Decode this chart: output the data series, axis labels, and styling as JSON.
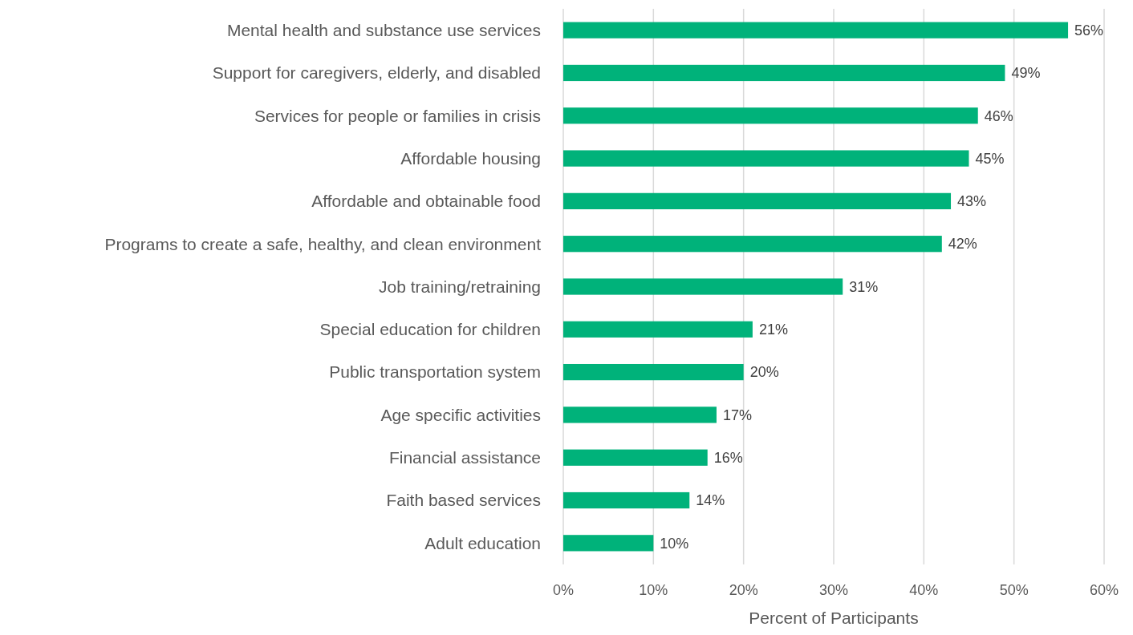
{
  "chart_data": {
    "type": "bar",
    "orientation": "horizontal",
    "categories": [
      "Mental health and substance use services",
      "Support for caregivers, elderly, and disabled",
      "Services for people or families in crisis",
      "Affordable housing",
      "Affordable and obtainable food",
      "Programs to create a safe, healthy, and clean environment",
      "Job training/retraining",
      "Special education for children",
      "Public transportation system",
      "Age specific activities",
      "Financial assistance",
      "Faith based services",
      "Adult education"
    ],
    "values": [
      56,
      49,
      46,
      45,
      43,
      42,
      31,
      21,
      20,
      17,
      16,
      14,
      10
    ],
    "value_labels": [
      "56%",
      "49%",
      "46%",
      "45%",
      "43%",
      "42%",
      "31%",
      "21%",
      "20%",
      "17%",
      "16%",
      "14%",
      "10%"
    ],
    "color": "#00b27a",
    "xlim": [
      0,
      60
    ],
    "xticks": [
      {
        "value": 0,
        "label": "0%"
      },
      {
        "value": 10,
        "label": "10%"
      },
      {
        "value": 20,
        "label": "20%"
      },
      {
        "value": 30,
        "label": "30%"
      },
      {
        "value": 40,
        "label": "40%"
      },
      {
        "value": 50,
        "label": "50%"
      },
      {
        "value": 60,
        "label": "60%"
      }
    ],
    "xlabel": "Percent of Participants",
    "grid": "x"
  }
}
